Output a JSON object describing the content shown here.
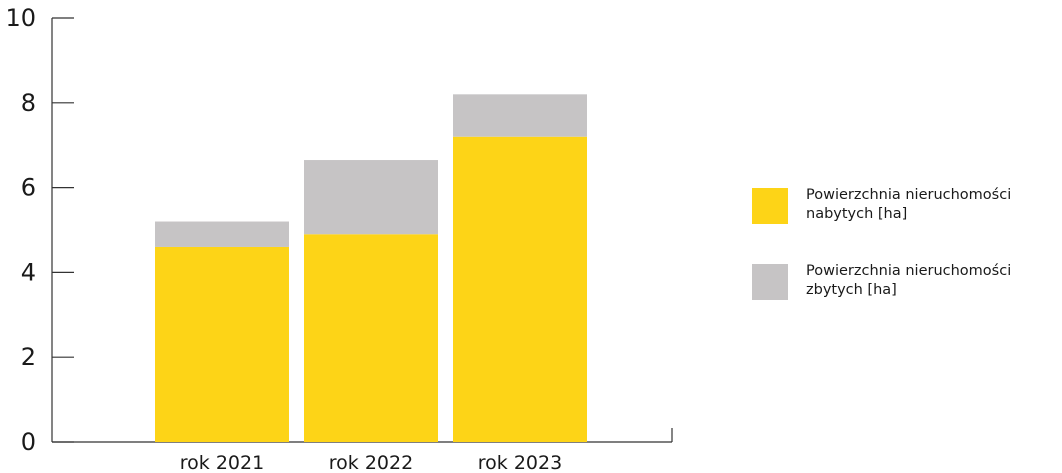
{
  "chart_data": {
    "type": "bar",
    "stacked": true,
    "categories": [
      "rok 2021",
      "rok 2022",
      "rok 2023"
    ],
    "series": [
      {
        "name": "Powierzchnia nieruchomości nabytych [ha]",
        "color": "#fdd417",
        "values": [
          4.6,
          4.9,
          7.2
        ]
      },
      {
        "name": "Powierzchnia nieruchomości zbytych [ha]",
        "color": "#c6c4c5",
        "values": [
          0.6,
          1.75,
          1.0
        ]
      }
    ],
    "ylim": [
      0,
      10
    ],
    "yticks": [
      "0",
      "2",
      "4",
      "6",
      "8",
      "10"
    ],
    "title": "",
    "xlabel": "",
    "ylabel": "",
    "legend_position": "right",
    "grid": false
  }
}
